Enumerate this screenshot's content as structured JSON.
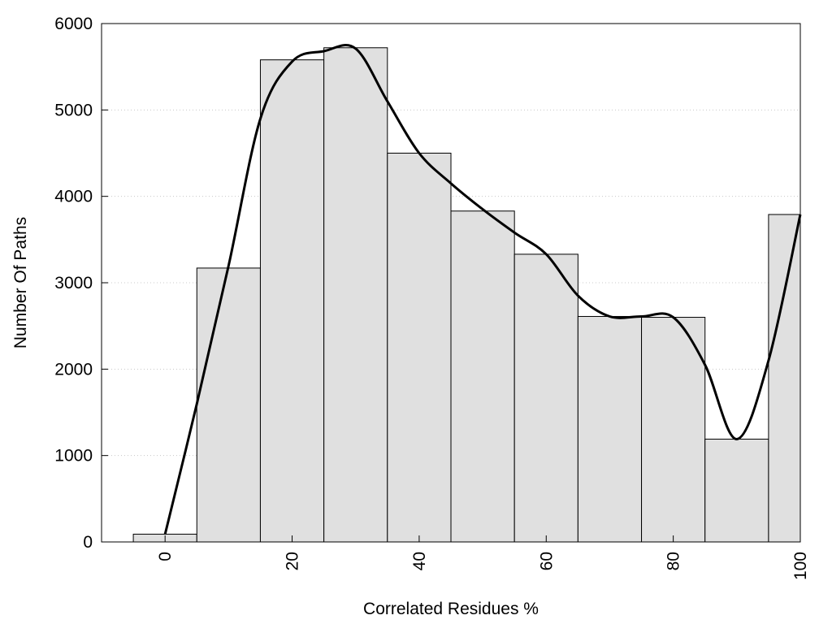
{
  "chart_data": {
    "type": "bar",
    "title": "",
    "xlabel": "Correlated Residues %",
    "ylabel": "Number Of Paths",
    "categories": [
      "0",
      "10",
      "20",
      "30",
      "40",
      "50",
      "60",
      "70",
      "80",
      "90",
      "100"
    ],
    "x": [
      0,
      10,
      20,
      30,
      40,
      50,
      60,
      70,
      80,
      90,
      100
    ],
    "values": [
      90,
      3170,
      5580,
      5720,
      4500,
      3830,
      3330,
      2610,
      2600,
      1190,
      3790
    ],
    "bin_width": 10,
    "xlim": [
      -10,
      100
    ],
    "ylim": [
      0,
      6000
    ],
    "x_ticks": [
      0,
      20,
      40,
      60,
      80,
      100
    ],
    "y_ticks": [
      0,
      1000,
      2000,
      3000,
      4000,
      5000,
      6000
    ],
    "grid": "horizontal dotted",
    "bar_color": "#e0e0e0",
    "line_color": "#000000",
    "trend_line": {
      "x": [
        0,
        5,
        10,
        15,
        20,
        25,
        30,
        35,
        40,
        45,
        50,
        55,
        60,
        65,
        70,
        75,
        80,
        85,
        90,
        95,
        100
      ],
      "y": [
        90,
        1600,
        3200,
        4900,
        5560,
        5680,
        5710,
        5100,
        4500,
        4150,
        3850,
        3580,
        3330,
        2850,
        2610,
        2610,
        2600,
        2050,
        1190,
        2100,
        3790
      ]
    }
  }
}
